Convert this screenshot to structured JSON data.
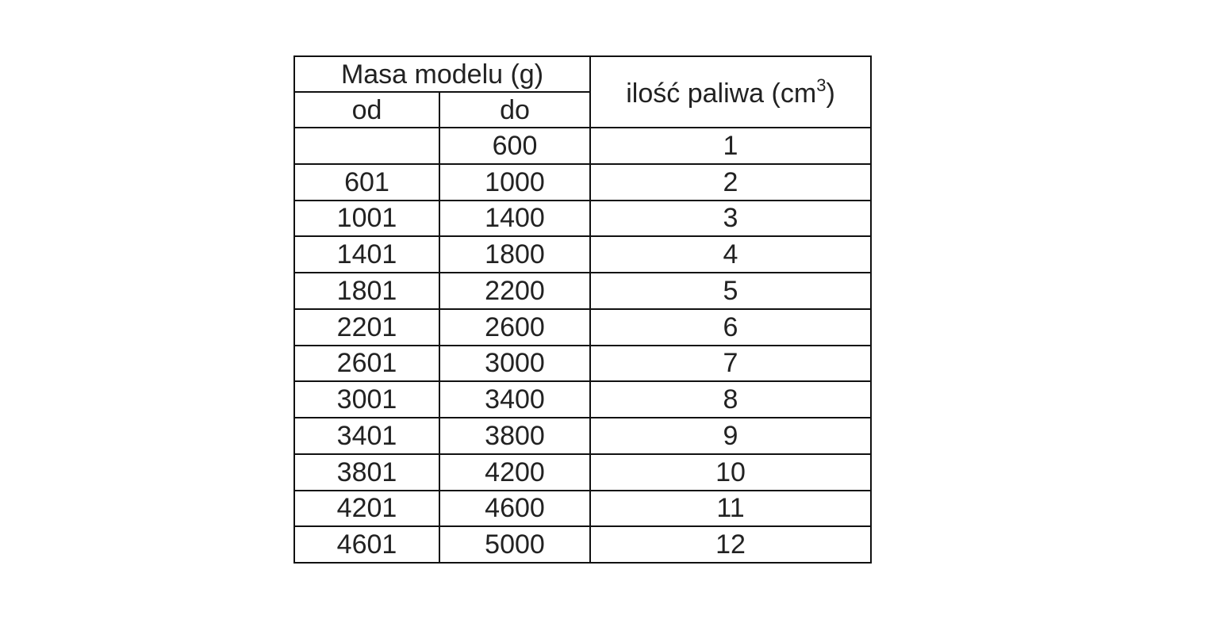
{
  "table": {
    "header": {
      "group": "Masa modelu (g)",
      "from": "od",
      "to": "do",
      "fuel": {
        "text": "ilość paliwa (cm",
        "sup": "3",
        "after": ")"
      }
    },
    "rows": [
      [
        null,
        600,
        1
      ],
      [
        601,
        1000,
        2
      ],
      [
        1001,
        1400,
        3
      ],
      [
        1401,
        1800,
        4
      ],
      [
        1801,
        2200,
        5
      ],
      [
        2201,
        2600,
        6
      ],
      [
        2601,
        3000,
        7
      ],
      [
        3001,
        3400,
        8
      ],
      [
        3401,
        3800,
        9
      ],
      [
        3801,
        4200,
        10
      ],
      [
        4201,
        4600,
        11
      ],
      [
        4601,
        5000,
        12
      ]
    ]
  }
}
